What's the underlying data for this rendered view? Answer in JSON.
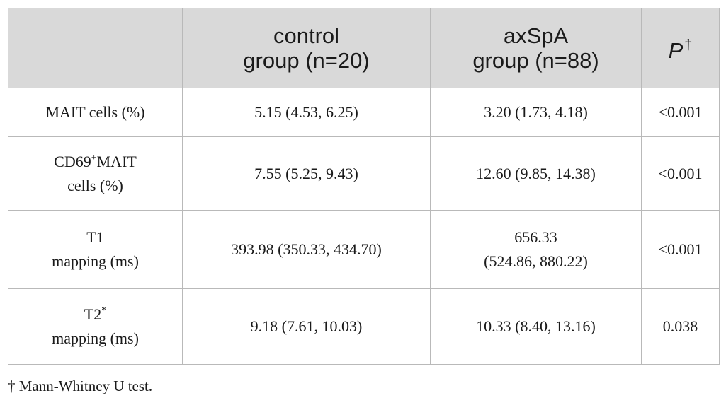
{
  "header": {
    "col0": "",
    "col1_line1": "control",
    "col1_line2": "group (n=20)",
    "col2_line1": "axSpA",
    "col2_line2": "group (n=88)",
    "col3_label": "P",
    "col3_mark": "†"
  },
  "rows": [
    {
      "label_line1": "MAIT cells (%)",
      "control": "5.15 (4.53, 6.25)",
      "axspa_line1": "3.20 (1.73, 4.18)",
      "p": "<0.001"
    },
    {
      "label_pre": "CD69",
      "label_sup": "+",
      "label_post": "MAIT",
      "label_line2": "cells (%)",
      "control": "7.55 (5.25, 9.43)",
      "axspa_line1": "12.60 (9.85, 14.38)",
      "p": "<0.001"
    },
    {
      "label_line1": "T1",
      "label_line2": "mapping (ms)",
      "control": "393.98 (350.33, 434.70)",
      "axspa_line1": "656.33",
      "axspa_line2": "(524.86, 880.22)",
      "p": "<0.001"
    },
    {
      "label_pre": "T2",
      "label_sup": "*",
      "label_line2": "mapping (ms)",
      "control": "9.18 (7.61, 10.03)",
      "axspa_line1": "10.33 (8.40, 13.16)",
      "p": "0.038"
    }
  ],
  "footnote": "† Mann-Whitney U test."
}
